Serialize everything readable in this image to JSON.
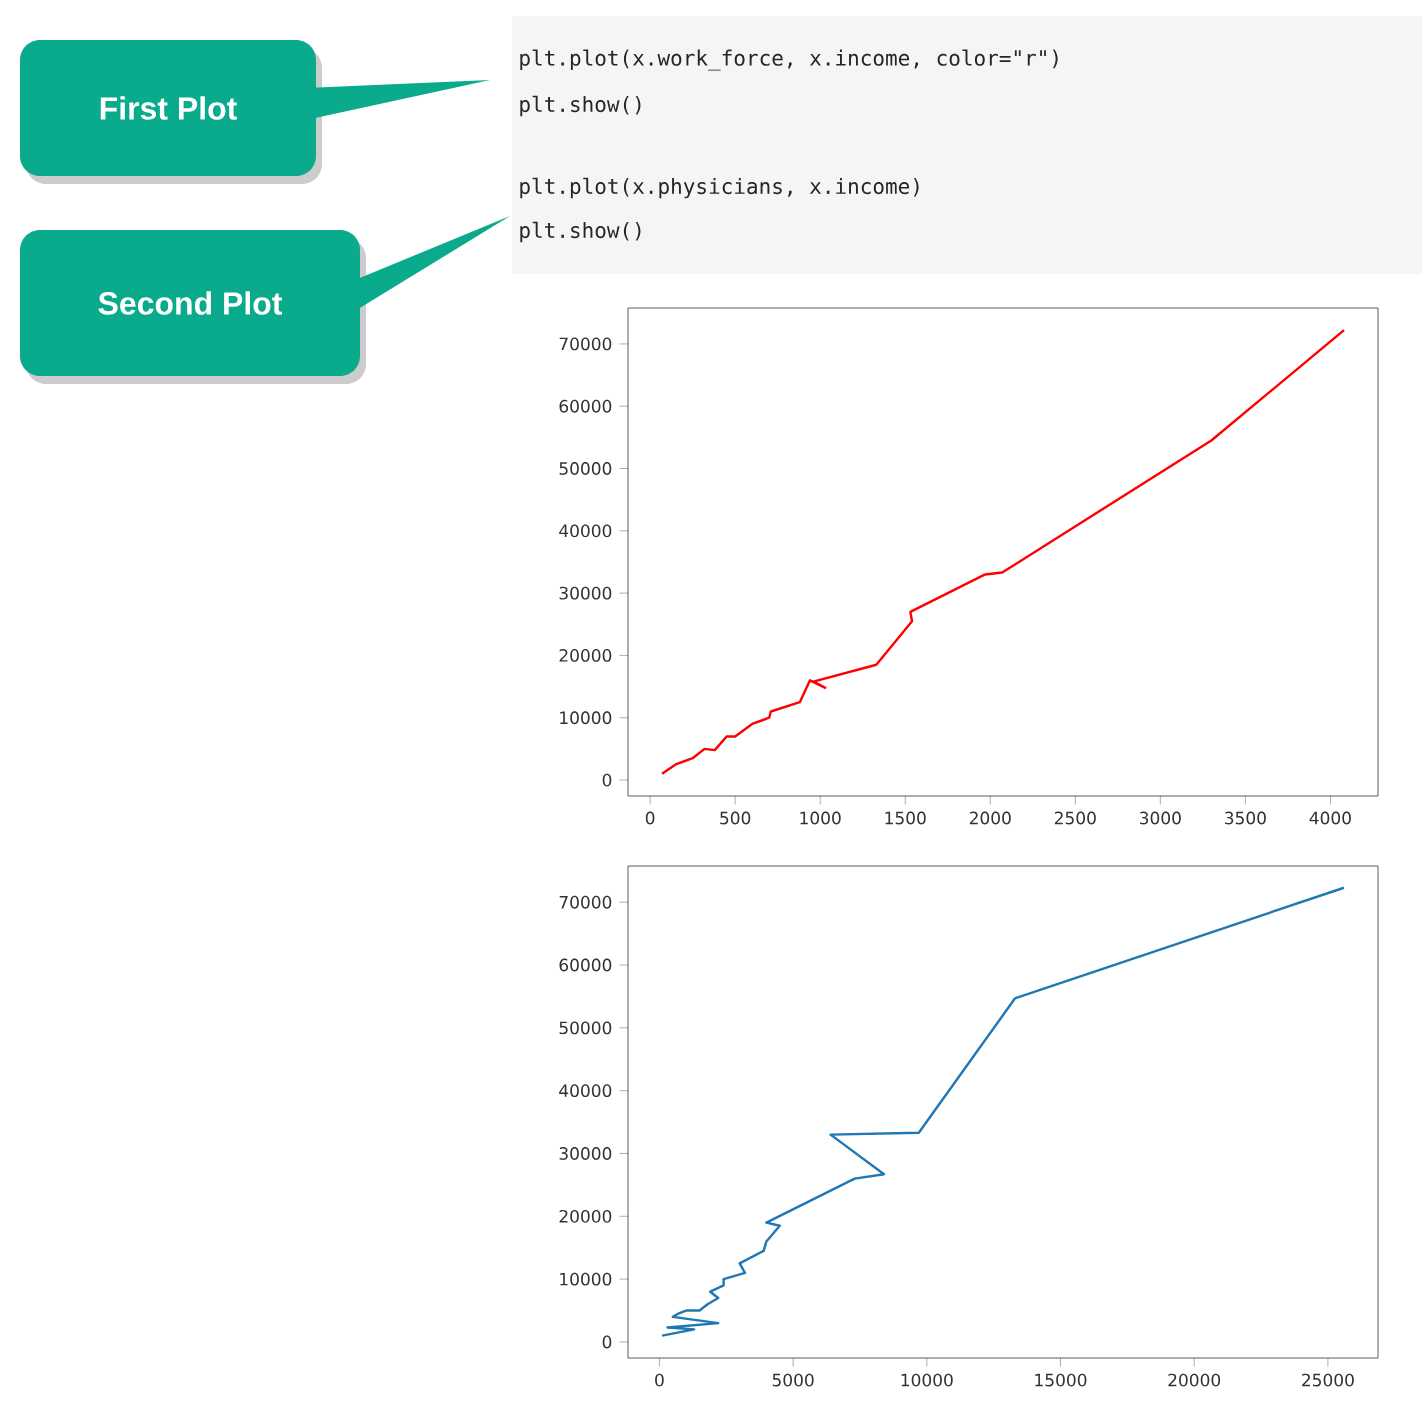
{
  "chart_data": [
    {
      "type": "line",
      "color": "#ff0000",
      "x": [
        70,
        150,
        250,
        320,
        380,
        450,
        500,
        600,
        700,
        710,
        880,
        940,
        1030,
        960,
        1330,
        1540,
        1530,
        1970,
        2070,
        3300,
        4080
      ],
      "values": [
        1000,
        2500,
        3500,
        5000,
        4800,
        7000,
        7000,
        9000,
        10000,
        11000,
        12500,
        16000,
        14800,
        15800,
        18500,
        25500,
        27000,
        33000,
        33300,
        54500,
        72200
      ],
      "xlim": [
        -130,
        4280
      ],
      "ylim": [
        -2560,
        75760
      ],
      "xticks": [
        0,
        500,
        1000,
        1500,
        2000,
        2500,
        3000,
        3500,
        4000
      ],
      "yticks": [
        0,
        10000,
        20000,
        30000,
        40000,
        50000,
        60000,
        70000
      ],
      "annotations": [
        "First Plot",
        "plt.plot(x.work_force, x.income, color=\"r\")",
        "plt.show()"
      ]
    },
    {
      "type": "line",
      "color": "#1f77b4",
      "x": [
        100,
        1300,
        300,
        2200,
        500,
        700,
        1000,
        1500,
        1800,
        2200,
        1900,
        2400,
        2400,
        3200,
        3000,
        3900,
        4000,
        4500,
        4000,
        7300,
        8400,
        6400,
        9700,
        13300,
        25600
      ],
      "values": [
        1000,
        2000,
        2300,
        3000,
        4000,
        4500,
        5000,
        5000,
        6000,
        7000,
        8000,
        9000,
        10000,
        11000,
        12500,
        14500,
        16000,
        18500,
        19000,
        26000,
        26700,
        33000,
        33300,
        54700,
        72300
      ],
      "xlim": [
        -1175,
        26875
      ],
      "ylim": [
        -2560,
        75760
      ],
      "xticks": [
        0,
        5000,
        10000,
        15000,
        20000,
        25000
      ],
      "yticks": [
        0,
        10000,
        20000,
        30000,
        40000,
        50000,
        60000,
        70000
      ],
      "annotations": [
        "Second Plot",
        "plt.plot(x.physicians, x.income)",
        "plt.show()"
      ]
    }
  ]
}
